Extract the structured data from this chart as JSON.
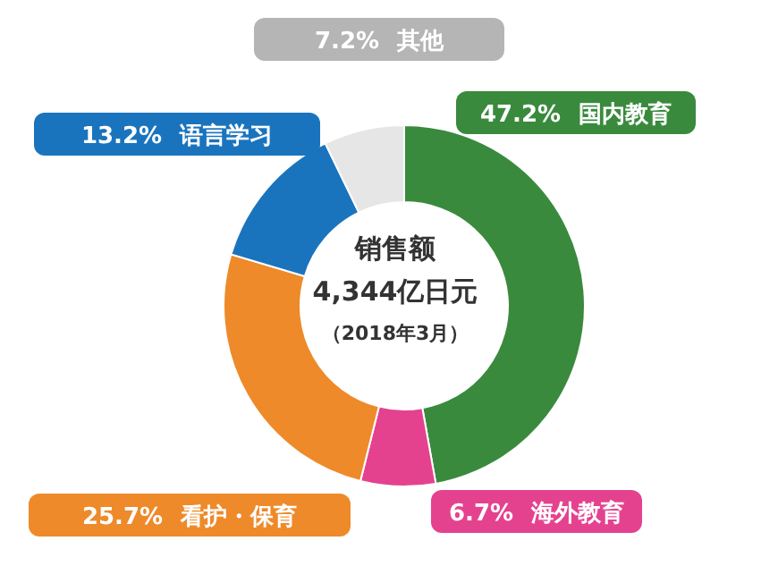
{
  "chart_data": {
    "type": "donut",
    "title": "销售额",
    "subtitle": "4,344亿日元",
    "annotations": [
      "（2018年3月）"
    ],
    "categories": [
      "国内教育",
      "海外教育",
      "看护・保育",
      "语言学习",
      "其他"
    ],
    "values": [
      47.2,
      6.7,
      25.7,
      13.2,
      7.2
    ],
    "colors": [
      "#3a8a3e",
      "#e4428f",
      "#ee8a2a",
      "#1a74bd",
      "#e6e6e6"
    ],
    "value_labels": [
      "47.2%",
      "6.7%",
      "25.7%",
      "13.2%",
      "7.2%"
    ]
  }
}
